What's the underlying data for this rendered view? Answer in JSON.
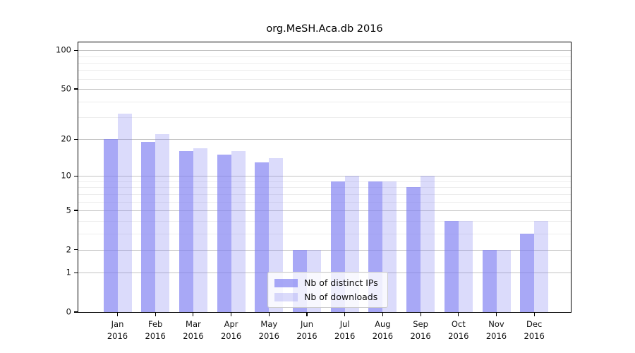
{
  "chart_data": {
    "type": "bar",
    "title": "org.MeSH.Aca.db 2016",
    "categories": [
      "Jan 2016",
      "Feb 2016",
      "Mar 2016",
      "Apr 2016",
      "May 2016",
      "Jun 2016",
      "Jul 2016",
      "Aug 2016",
      "Sep 2016",
      "Oct 2016",
      "Nov 2016",
      "Dec 2016"
    ],
    "series": [
      {
        "name": "Nb of distinct IPs",
        "color": "#a8a8f6",
        "values": [
          20,
          19,
          16,
          15,
          13,
          2,
          9,
          9,
          8,
          4,
          2,
          3
        ]
      },
      {
        "name": "Nb of downloads",
        "color": "#dcdcf7",
        "values": [
          32,
          22,
          17,
          16,
          14,
          2,
          10,
          9,
          10,
          4,
          2,
          4
        ]
      }
    ],
    "xlabel": "",
    "ylabel": "",
    "yscale": "log1p",
    "ylim": [
      0,
      115
    ],
    "yticks": [
      100,
      50,
      20,
      10,
      5,
      2,
      1,
      0
    ],
    "yminor_gridlines": [
      3,
      4,
      6,
      7,
      8,
      9,
      30,
      40,
      60,
      70,
      80,
      90
    ],
    "grid": "horizontal",
    "legend_position": "inside-bottom-center",
    "colors": {
      "bar_distinct_ips": "#a8a8f6",
      "bar_downloads": "#dcdcf7",
      "major_gridline": "#c2c2c2",
      "minor_gridline": "#ededed",
      "axis": "#000000",
      "background": "#ffffff"
    }
  }
}
